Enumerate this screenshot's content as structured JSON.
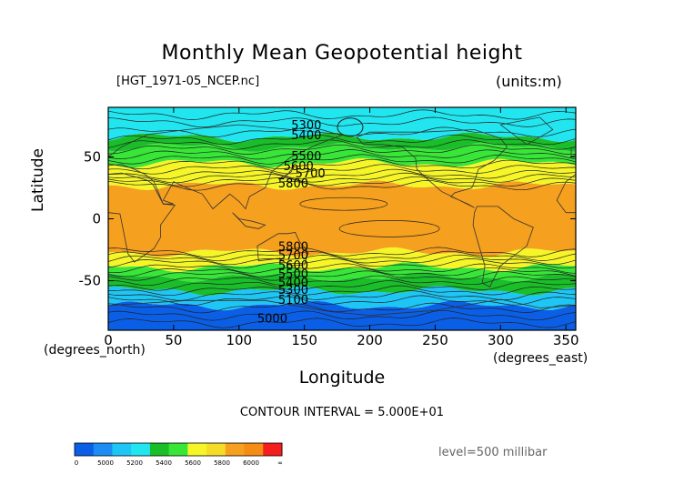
{
  "title": "Monthly Mean Geopotential height",
  "file_label": "[HGT_1971-05_NCEP.nc]",
  "units_label": "(units:m)",
  "contour_interval": "CONTOUR INTERVAL = 5.000E+01",
  "level": "level=500 millibar",
  "chart_data": {
    "type": "heatmap",
    "xlabel": "Longitude",
    "xunits": "(degrees_east)",
    "ylabel": "Latitude",
    "yunits": "(degrees_north)",
    "xlim": [
      0,
      357.5
    ],
    "ylim": [
      -90,
      90
    ],
    "xticks": [
      0,
      50,
      100,
      150,
      200,
      250,
      300,
      350
    ],
    "yticks": [
      -50,
      0,
      50
    ],
    "contour_labels": [
      {
        "lon": 140,
        "lat": 76,
        "value": "5300"
      },
      {
        "lon": 140,
        "lat": 68,
        "value": "5400"
      },
      {
        "lon": 140,
        "lat": 51,
        "value": "5500"
      },
      {
        "lon": 134,
        "lat": 43,
        "value": "5600"
      },
      {
        "lon": 143,
        "lat": 37,
        "value": "5700"
      },
      {
        "lon": 130,
        "lat": 29,
        "value": "5800"
      },
      {
        "lon": 130,
        "lat": -22,
        "value": "5800"
      },
      {
        "lon": 130,
        "lat": -29,
        "value": "5700"
      },
      {
        "lon": 130,
        "lat": -37,
        "value": "5600"
      },
      {
        "lon": 130,
        "lat": -44,
        "value": "5500"
      },
      {
        "lon": 130,
        "lat": -51,
        "value": "5400"
      },
      {
        "lon": 130,
        "lat": -57,
        "value": "5300"
      },
      {
        "lon": 130,
        "lat": -65,
        "value": "5100"
      },
      {
        "lon": 114,
        "lat": -80,
        "value": "5000"
      }
    ],
    "colorbar": {
      "ticks": [
        "0",
        "5000",
        "5200",
        "5400",
        "5600",
        "5800",
        "6000",
        "∞"
      ],
      "colors": [
        "#0a5fe6",
        "#1e8cf5",
        "#1ec6f5",
        "#21e6f0",
        "#19be28",
        "#37e637",
        "#f5f528",
        "#f5dc28",
        "#f5a01e",
        "#f58c14",
        "#f51e1e"
      ]
    },
    "bands": [
      {
        "min": -90,
        "max": -70,
        "color": "#0a5fe6"
      },
      {
        "min": -70,
        "max": -58,
        "color": "#1ec6f5"
      },
      {
        "min": -58,
        "max": -47,
        "color": "#19be28"
      },
      {
        "min": -47,
        "max": -39,
        "color": "#37e637"
      },
      {
        "min": -39,
        "max": -27,
        "color": "#f5f528"
      },
      {
        "min": -27,
        "max": 27,
        "color": "#f5a01e"
      },
      {
        "min": 27,
        "max": 45,
        "color": "#f5f528"
      },
      {
        "min": 45,
        "max": 58,
        "color": "#37e637"
      },
      {
        "min": 58,
        "max": 66,
        "color": "#19be28"
      },
      {
        "min": 66,
        "max": 90,
        "color": "#21e6f0"
      }
    ]
  }
}
